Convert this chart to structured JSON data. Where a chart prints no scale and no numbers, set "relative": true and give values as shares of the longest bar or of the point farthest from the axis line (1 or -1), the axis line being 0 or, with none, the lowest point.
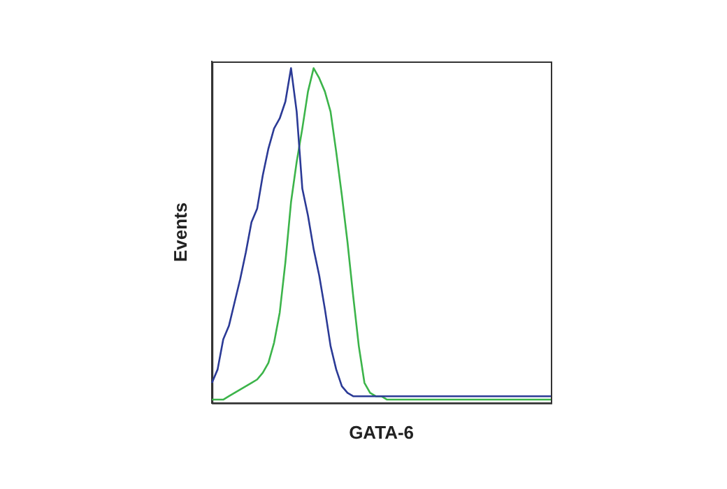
{
  "chart_data": {
    "type": "line",
    "relative": true,
    "xlabel": "GATA-6",
    "ylabel": "Events",
    "tick_labels": false,
    "marker": "none",
    "legend": false,
    "categories": [
      null,
      null,
      null,
      null,
      null,
      null,
      null,
      null,
      null,
      null,
      null,
      null,
      null,
      null,
      null,
      null,
      null,
      null,
      null,
      null,
      null,
      null,
      null,
      null,
      null,
      null,
      null,
      null,
      null,
      null,
      null,
      null,
      null,
      null,
      null,
      null,
      null,
      null,
      null,
      null,
      null,
      null,
      null,
      null,
      null,
      null,
      null,
      null,
      null,
      null,
      null,
      null,
      null,
      null,
      null,
      null,
      null,
      null,
      null,
      null,
      null
    ],
    "series": [
      {
        "color": "#2b3a96",
        "values": [
          0.06,
          0.1,
          0.19,
          0.23,
          0.3,
          0.37,
          0.45,
          0.54,
          0.58,
          0.68,
          0.76,
          0.82,
          0.85,
          0.9,
          1.0,
          0.87,
          0.64,
          0.56,
          0.46,
          0.38,
          0.28,
          0.17,
          0.1,
          0.05,
          0.03,
          0.02,
          0.02,
          0.02,
          0.02,
          0.02,
          0.02,
          0.02,
          0.02,
          0.02,
          0.02,
          0.02,
          0.02,
          0.02,
          0.02,
          0.02,
          0.02,
          0.02,
          0.02,
          0.02,
          0.02,
          0.02,
          0.02,
          0.02,
          0.02,
          0.02,
          0.02,
          0.02,
          0.02,
          0.02,
          0.02,
          0.02,
          0.02,
          0.02,
          0.02,
          0.02,
          0.02
        ]
      },
      {
        "color": "#3cb44a",
        "values": [
          0.01,
          0.01,
          0.01,
          0.02,
          0.03,
          0.04,
          0.05,
          0.06,
          0.07,
          0.09,
          0.12,
          0.18,
          0.27,
          0.42,
          0.6,
          0.72,
          0.82,
          0.93,
          1.0,
          0.97,
          0.93,
          0.87,
          0.75,
          0.62,
          0.48,
          0.32,
          0.17,
          0.06,
          0.03,
          0.02,
          0.02,
          0.01,
          0.01,
          0.01,
          0.01,
          0.01,
          0.01,
          0.01,
          0.01,
          0.01,
          0.01,
          0.01,
          0.01,
          0.01,
          0.01,
          0.01,
          0.01,
          0.01,
          0.01,
          0.01,
          0.01,
          0.01,
          0.01,
          0.01,
          0.01,
          0.01,
          0.01,
          0.01,
          0.01,
          0.01,
          0.01
        ]
      }
    ]
  }
}
